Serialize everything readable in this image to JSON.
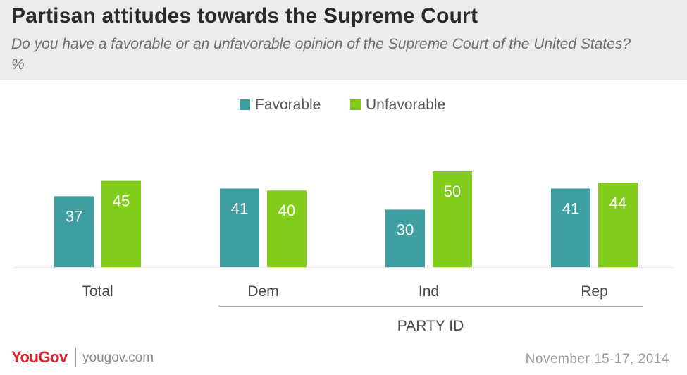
{
  "header": {
    "title": "Partisan attitudes towards the Supreme Court",
    "subtitle": "Do you have a favorable or an unfavorable opinion of the Supreme Court of the United States? %"
  },
  "chart_data": {
    "type": "bar",
    "categories": [
      "Total",
      "Dem",
      "Ind",
      "Rep"
    ],
    "series": [
      {
        "name": "Favorable",
        "values": [
          37,
          41,
          30,
          41
        ],
        "color": "#3e9ea0"
      },
      {
        "name": "Unfavorable",
        "values": [
          45,
          40,
          50,
          44
        ],
        "color": "#82cc1c"
      }
    ],
    "group_label": "PARTY ID",
    "group_categories": [
      "Dem",
      "Ind",
      "Rep"
    ],
    "legend_position": "top-center",
    "data_labels": true,
    "grid": false,
    "ylim": [
      0,
      50
    ]
  },
  "footer": {
    "logo": "YouGov",
    "site": "yougov.com",
    "date": "November 15-17, 2014"
  }
}
